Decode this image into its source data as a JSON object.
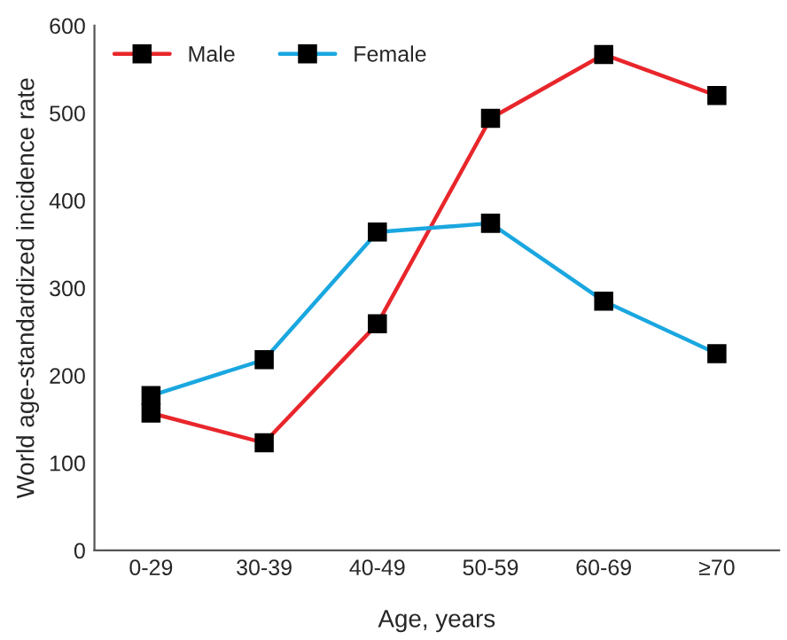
{
  "chart_data": {
    "type": "line",
    "xlabel": "Age, years",
    "ylabel": "World age-standardized incidence rate",
    "categories": [
      "0-29",
      "30-39",
      "40-49",
      "50-59",
      "60-69",
      "≥70"
    ],
    "series": [
      {
        "name": "Male",
        "color": "#e8262b",
        "values": [
          157,
          123,
          259,
          494,
          567,
          520
        ]
      },
      {
        "name": "Female",
        "color": "#1aa7e0",
        "values": [
          177,
          218,
          364,
          374,
          285,
          225
        ]
      }
    ],
    "ylim": [
      0,
      600
    ],
    "yticks": [
      0,
      100,
      200,
      300,
      400,
      500,
      600
    ],
    "grid": false,
    "legend": "top left",
    "marker": "square",
    "line_style": "solid"
  }
}
